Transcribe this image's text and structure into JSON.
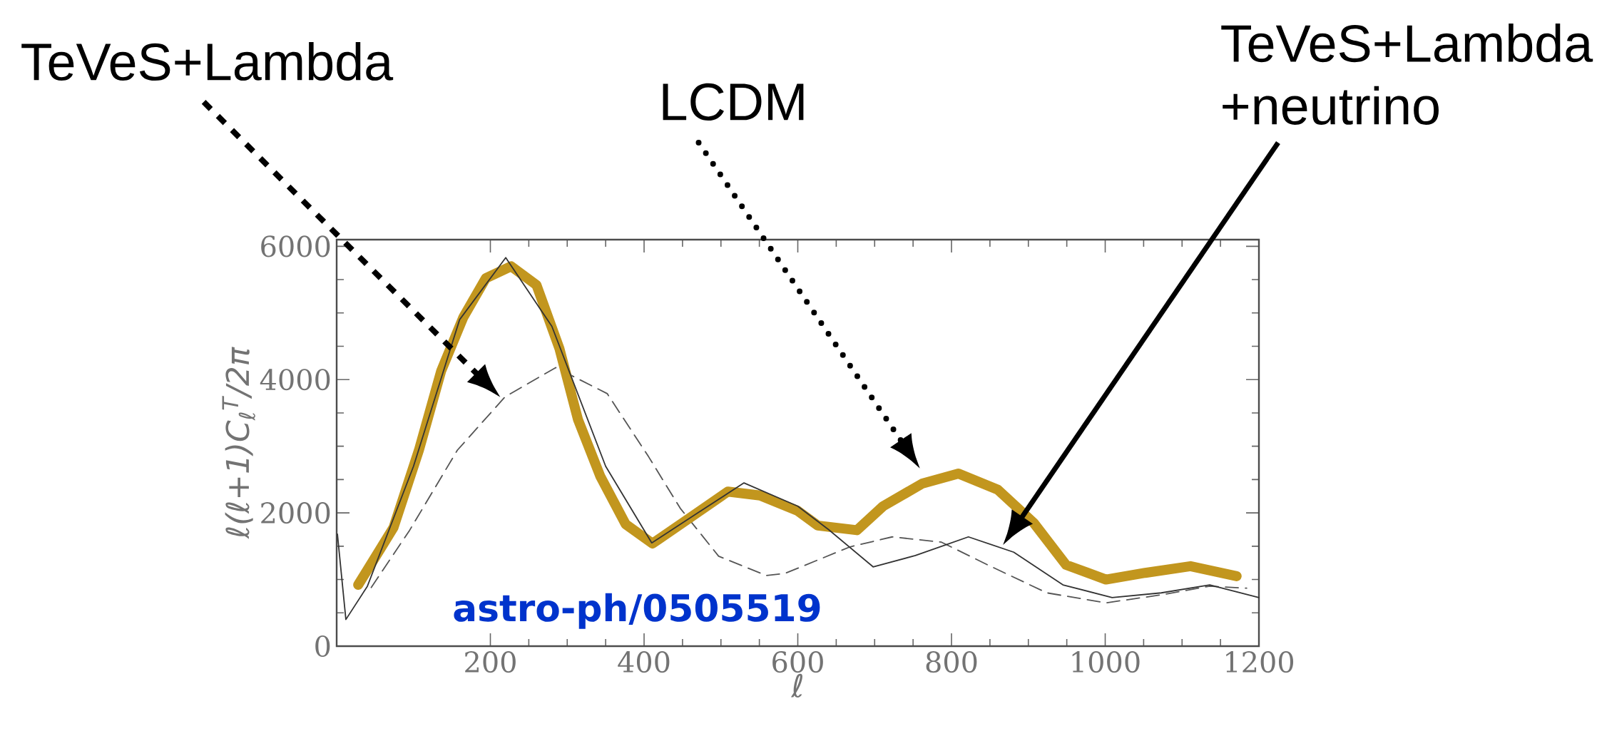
{
  "chart_data": {
    "type": "line",
    "xlabel": "ℓ",
    "ylabel": "ℓ(ℓ+1)C$_{ℓ}$$^{T}$/2π",
    "xlim": [
      0,
      1200
    ],
    "ylim": [
      0,
      6100
    ],
    "xticks": [
      200,
      400,
      600,
      800,
      1000,
      1200
    ],
    "yticks": [
      0,
      2000,
      4000,
      6000
    ],
    "grid": false,
    "legend": false,
    "marker": "none",
    "series": [
      {
        "name": "TeVeS+Lambda",
        "color": "#555555",
        "line_style": "dashed",
        "x": [
          45,
          95,
          157,
          219,
          285,
          352,
          406,
          447,
          497,
          559,
          583,
          668,
          723,
          787,
          847,
          924,
          1001,
          1073,
          1136,
          1184
        ],
        "values": [
          880,
          1740,
          2940,
          3740,
          4180,
          3790,
          2840,
          2070,
          1350,
          1060,
          1090,
          1490,
          1640,
          1560,
          1220,
          800,
          650,
          770,
          900,
          870
        ]
      },
      {
        "name": "LCDM",
        "color": "#c2961e",
        "line_style": "solid",
        "x": [
          28,
          74,
          107,
          136,
          165,
          194,
          227,
          260,
          290,
          314,
          343,
          376,
          411,
          460,
          509,
          551,
          600,
          626,
          677,
          711,
          762,
          809,
          860,
          907,
          949,
          1001,
          1052,
          1111,
          1171
        ],
        "values": [
          920,
          1780,
          2940,
          4130,
          4940,
          5520,
          5700,
          5420,
          4460,
          3400,
          2550,
          1830,
          1540,
          1930,
          2320,
          2260,
          2030,
          1810,
          1740,
          2100,
          2440,
          2590,
          2350,
          1850,
          1220,
          1000,
          1100,
          1200,
          1050
        ]
      },
      {
        "name": "TeVeS+Lambda +neutrino",
        "color": "#333333",
        "line_style": "solid",
        "x": [
          1,
          12,
          40,
          100,
          160,
          220,
          280,
          350,
          410,
          470,
          530,
          600,
          640,
          698,
          753,
          822,
          881,
          945,
          1009,
          1073,
          1136,
          1200
        ],
        "values": [
          1680,
          400,
          900,
          2700,
          4900,
          5830,
          4800,
          2700,
          1550,
          2000,
          2450,
          2100,
          1750,
          1190,
          1360,
          1640,
          1410,
          920,
          730,
          800,
          920,
          730
        ]
      }
    ],
    "annotations": [
      "astro-ph/0505519"
    ]
  }
}
